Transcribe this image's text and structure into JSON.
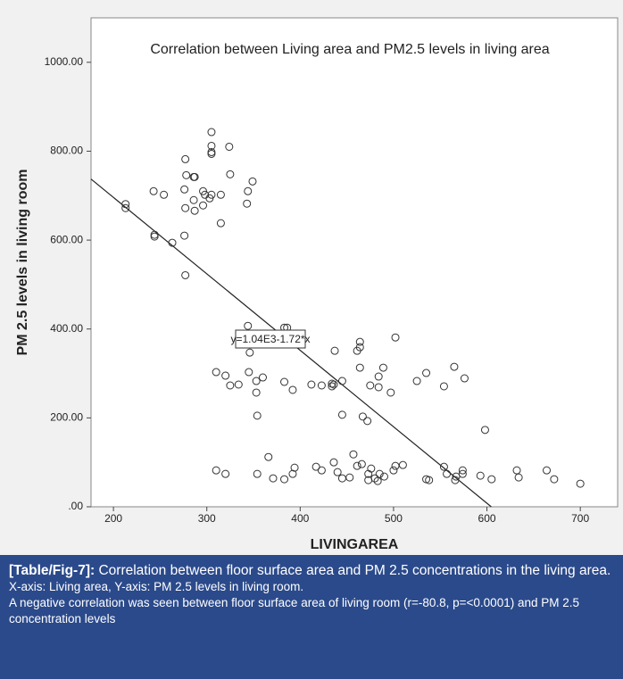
{
  "chart_data": {
    "type": "scatter",
    "title": "Correlation between Living area and PM2.5 levels in living area",
    "x_label": "LIVINGAREA",
    "y_label": "PM 2.5 levels in living room",
    "annotation": "y=1.04E3-1.72*x",
    "fit": {
      "intercept": 1040,
      "slope": -1.72
    },
    "xlim": [
      176,
      740
    ],
    "ylim": [
      0,
      1100
    ],
    "xticks": [
      200,
      300,
      400,
      500,
      600,
      700
    ],
    "yticks": [
      {
        "value": 0,
        "label": ".00"
      },
      {
        "value": 200,
        "label": "200.00"
      },
      {
        "value": 400,
        "label": "400.00"
      },
      {
        "value": 600,
        "label": "600.00"
      },
      {
        "value": 800,
        "label": "800.00"
      },
      {
        "value": 1000,
        "label": "1000.00"
      }
    ],
    "color": "#333333",
    "x": [
      213,
      213,
      243,
      254,
      244,
      244,
      263,
      277,
      276,
      277,
      278,
      276,
      286,
      277,
      286,
      287,
      296,
      298,
      287,
      296,
      305,
      305,
      305,
      305,
      305,
      303,
      315,
      324,
      325,
      315,
      344,
      349,
      343,
      344,
      346,
      386,
      383,
      437,
      464,
      464,
      461,
      502,
      310,
      320,
      325,
      334,
      345,
      353,
      360,
      353,
      354,
      383,
      392,
      412,
      423,
      434,
      434,
      436,
      445,
      445,
      464,
      467,
      475,
      472,
      484,
      484,
      489,
      497,
      525,
      535,
      554,
      565,
      576,
      598,
      310,
      320,
      354,
      366,
      371,
      383,
      392,
      394,
      417,
      423,
      436,
      440,
      445,
      453,
      457,
      461,
      466,
      473,
      473,
      476,
      480,
      483,
      485,
      490,
      500,
      502,
      510,
      535,
      538,
      554,
      557,
      567,
      566,
      574,
      574,
      593,
      605,
      632,
      634,
      664,
      672,
      700
    ],
    "values": [
      681,
      672,
      710,
      702,
      612,
      608,
      594,
      521,
      610,
      782,
      746,
      714,
      742,
      672,
      690,
      666,
      710,
      702,
      742,
      678,
      843,
      812,
      798,
      794,
      702,
      694,
      702,
      810,
      748,
      638,
      710,
      732,
      682,
      407,
      347,
      403,
      403,
      351,
      359,
      371,
      351,
      381,
      303,
      295,
      273,
      275,
      303,
      283,
      291,
      257,
      205,
      281,
      263,
      275,
      273,
      271,
      277,
      275,
      283,
      207,
      313,
      203,
      273,
      193,
      293,
      269,
      313,
      257,
      283,
      301,
      271,
      315,
      289,
      173,
      82,
      74,
      74,
      112,
      64,
      62,
      74,
      88,
      90,
      82,
      100,
      78,
      64,
      66,
      118,
      92,
      96,
      74,
      60,
      86,
      64,
      58,
      74,
      68,
      82,
      92,
      94,
      62,
      60,
      90,
      74,
      68,
      60,
      82,
      74,
      70,
      62,
      82,
      66,
      82,
      62,
      52
    ]
  },
  "caption": {
    "label": "[Table/Fig-7]:",
    "text": "Correlation between floor surface area and PM 2.5 concentrations in the living area.",
    "note1": "X-axis: Living area, Y-axis: PM 2.5 levels in living room.",
    "note2": "A negative correlation was seen between floor surface area of living room (r=-80.8, p=<0.0001) and PM 2.5 concentration levels"
  }
}
